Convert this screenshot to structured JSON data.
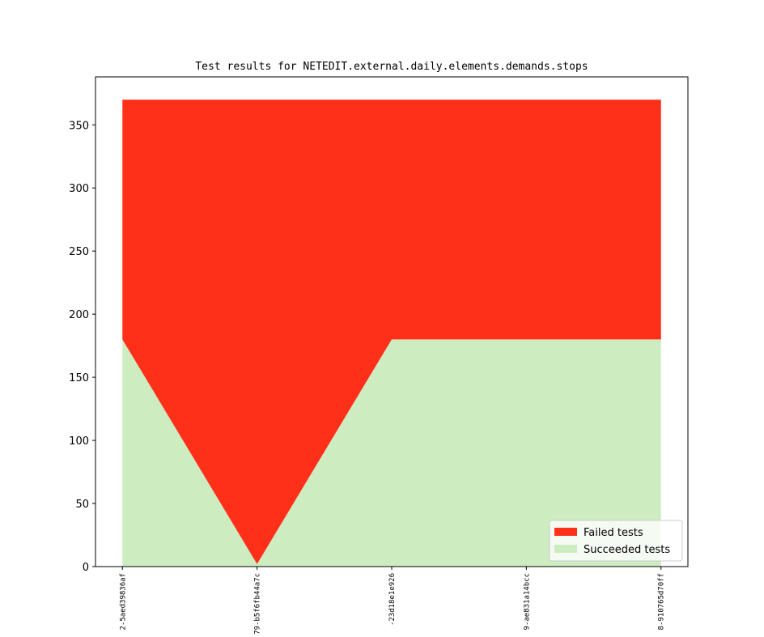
{
  "chart_data": {
    "type": "stacked-area",
    "title": "Test results for NETEDIT.external.daily.elements.demands.stops",
    "categories": [
      "2-5aed39836af",
      "79-b5f6fb44a7c",
      "-23d18e1e926",
      "9-ae831a14bcc",
      "8-910765d70ff"
    ],
    "series": [
      {
        "name": "Failed tests",
        "color": "#ff3019",
        "values": [
          190,
          368,
          190,
          190,
          190
        ]
      },
      {
        "name": "Succeeded tests",
        "color": "#cdecc0",
        "values": [
          180,
          2,
          180,
          180,
          180
        ]
      }
    ],
    "ylim": [
      0,
      388
    ],
    "yticks": [
      0,
      50,
      100,
      150,
      200,
      250,
      300,
      350
    ],
    "legend": "lower right"
  }
}
